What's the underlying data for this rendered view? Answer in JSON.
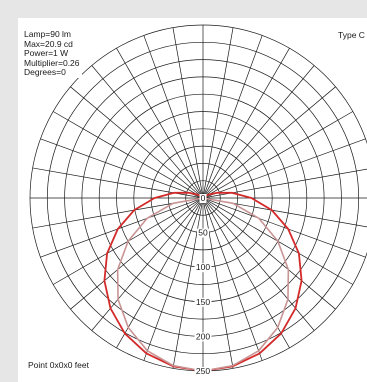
{
  "info": {
    "lamp": "Lamp=90 lm",
    "max": "Max=20.9 cd",
    "power": "Power=1 W",
    "multiplier": "Multiplier=0.26",
    "degrees": "Degrees=0"
  },
  "type_label": "Type C",
  "footer": "Point 0x0x0 feet",
  "chart_data": {
    "type": "polar",
    "radial_axis": {
      "unit": "cd",
      "range": [
        0,
        250
      ],
      "tick_labels": [
        "0",
        "50",
        "100",
        "150",
        "200",
        "250"
      ],
      "ring_step": 25
    },
    "angular_axis": {
      "spoke_step_deg": 10,
      "zero_direction": "down"
    },
    "series": [
      {
        "color": "#d42a2a",
        "angles_deg": [
          0,
          10,
          20,
          30,
          40,
          50,
          60,
          70,
          80,
          90,
          100,
          110,
          120,
          130,
          140,
          150,
          160,
          170,
          180
        ],
        "values": [
          250,
          247,
          239,
          226,
          208,
          186,
          160,
          131,
          101,
          70,
          43,
          22,
          10,
          4,
          1,
          0,
          0,
          0,
          0
        ]
      },
      {
        "color": "#c99494",
        "angles_deg": [
          0,
          10,
          20,
          30,
          40,
          50,
          60,
          70,
          80,
          90,
          100,
          110,
          120,
          130,
          140,
          150,
          160,
          170,
          180
        ],
        "values": [
          250,
          246,
          235,
          216,
          191,
          161,
          125,
          86,
          44,
          0,
          0,
          0,
          0,
          0,
          0,
          0,
          0,
          0,
          0
        ]
      }
    ]
  },
  "colors": {
    "grid": "#1a1a1a",
    "panel_bg": "#ffffff",
    "frame_bg": "#e6e6e6"
  }
}
